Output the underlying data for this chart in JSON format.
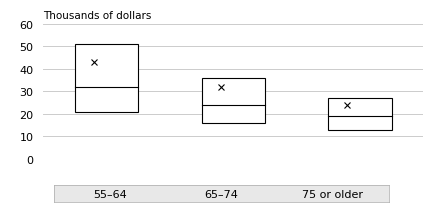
{
  "categories": [
    "55–64",
    "65–74",
    "75 or older"
  ],
  "boxes": [
    {
      "q1": 21,
      "median": 32,
      "q3": 51,
      "mean": 43,
      "whislo": 21,
      "whishi": 51
    },
    {
      "q1": 16,
      "median": 24,
      "q3": 36,
      "mean": 32,
      "whislo": 16,
      "whishi": 36
    },
    {
      "q1": 13,
      "median": 19,
      "q3": 27,
      "mean": 24,
      "whislo": 13,
      "whishi": 27
    }
  ],
  "ylim": [
    0,
    60
  ],
  "yticks": [
    0,
    10,
    20,
    30,
    40,
    50,
    60
  ],
  "ylabel": "Thousands of dollars",
  "box_color": "#ffffff",
  "box_edge_color": "#000000",
  "mean_marker": "x",
  "mean_color": "#000000",
  "grid_color": "#cccccc",
  "background_color": "#ffffff",
  "xlabel_band_color": "#e8e8e8",
  "figsize": [
    4.32,
    2.05
  ],
  "dpi": 100
}
